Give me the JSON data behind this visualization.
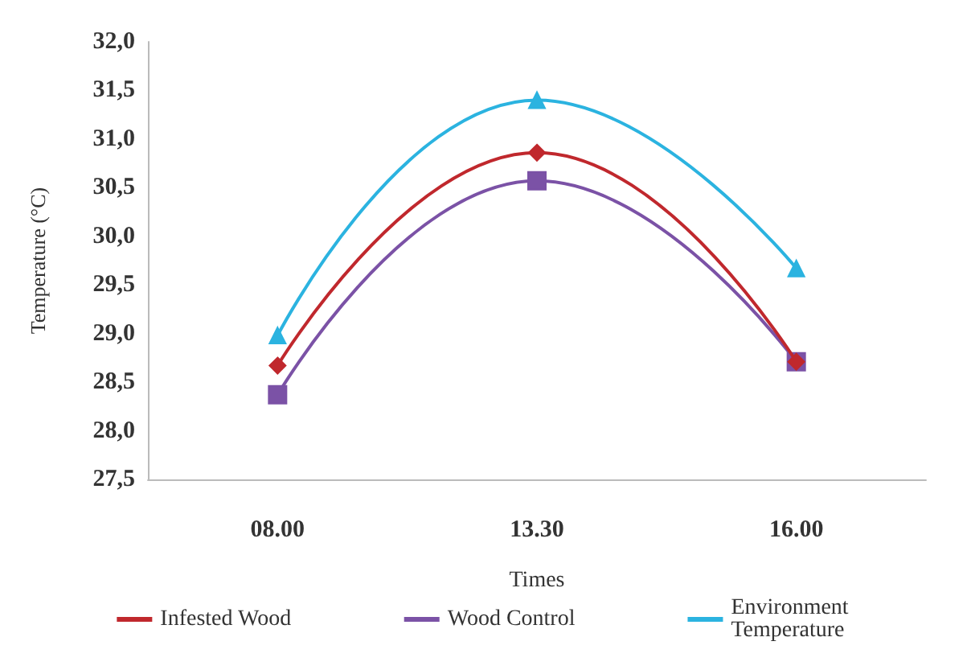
{
  "chart_data": {
    "type": "line",
    "xlabel": "Times",
    "ylabel": "Temperature (°C)",
    "categories": [
      "08.00",
      "13.30",
      "16.00"
    ],
    "series": [
      {
        "name": "Infested Wood",
        "color": "#c0282d",
        "marker": "diamond",
        "values": [
          28.67,
          30.86,
          28.71
        ]
      },
      {
        "name": "Wood Control",
        "color": "#7b52a6",
        "marker": "square",
        "values": [
          28.37,
          30.57,
          28.71
        ]
      },
      {
        "name": "Environment Temperature",
        "color": "#2bb3e0",
        "marker": "triangle",
        "values": [
          28.98,
          31.4,
          29.67
        ]
      }
    ],
    "ylim": [
      27.5,
      32
    ],
    "yticks": [
      {
        "value": 27.5,
        "label": "27,5"
      },
      {
        "value": 28,
        "label": "28,0"
      },
      {
        "value": 28.5,
        "label": "28,5"
      },
      {
        "value": 29,
        "label": "29,0"
      },
      {
        "value": 29.5,
        "label": "29,5"
      },
      {
        "value": 30,
        "label": "30,0"
      },
      {
        "value": 30.5,
        "label": "30,5"
      },
      {
        "value": 31,
        "label": "31,0"
      },
      {
        "value": 31.5,
        "label": "31,5"
      },
      {
        "value": 32,
        "label": "32,0"
      }
    ],
    "grid": false,
    "legend": "bottom",
    "line_style": "solid"
  }
}
